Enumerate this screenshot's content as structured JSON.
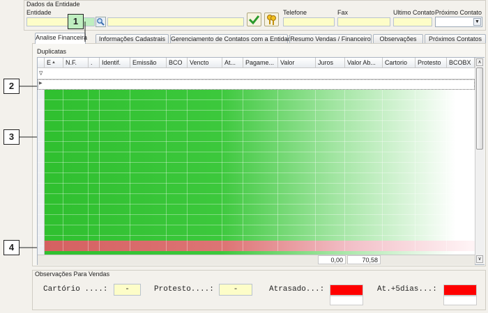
{
  "header": {
    "title": "Dados da Entidade",
    "fields": [
      "Entidade",
      "Telefone",
      "Fax",
      "Ultimo Contato",
      "Próximo Contato"
    ]
  },
  "tabs": [
    "Analise Financeira",
    "Informações Cadastrais",
    "Gerenciamento de Contatos com a Entidade",
    "Resumo Vendas / Financeiro",
    "Observações",
    "Próximos Contatos"
  ],
  "grid": {
    "title": "Duplicatas",
    "columns": [
      "E",
      "N.F.",
      ".",
      "Identif.",
      "Emissão",
      "BCO",
      "Vencto",
      "At...",
      "Pagame...",
      "Valor",
      "Juros",
      "Valor Ab...",
      "Cartorio",
      "Protesto",
      "BCOBX"
    ],
    "totals": [
      "0,00",
      "70,58"
    ]
  },
  "observations": {
    "title": "Observações Para Vendas",
    "items": [
      {
        "label": "Cartório ....:",
        "value": "-"
      },
      {
        "label": "Protesto....:",
        "value": "-"
      },
      {
        "label": "Atrasado...:"
      },
      {
        "label": "At.+5dias...:"
      }
    ]
  },
  "callouts": [
    "1",
    "2",
    "3",
    "4"
  ]
}
